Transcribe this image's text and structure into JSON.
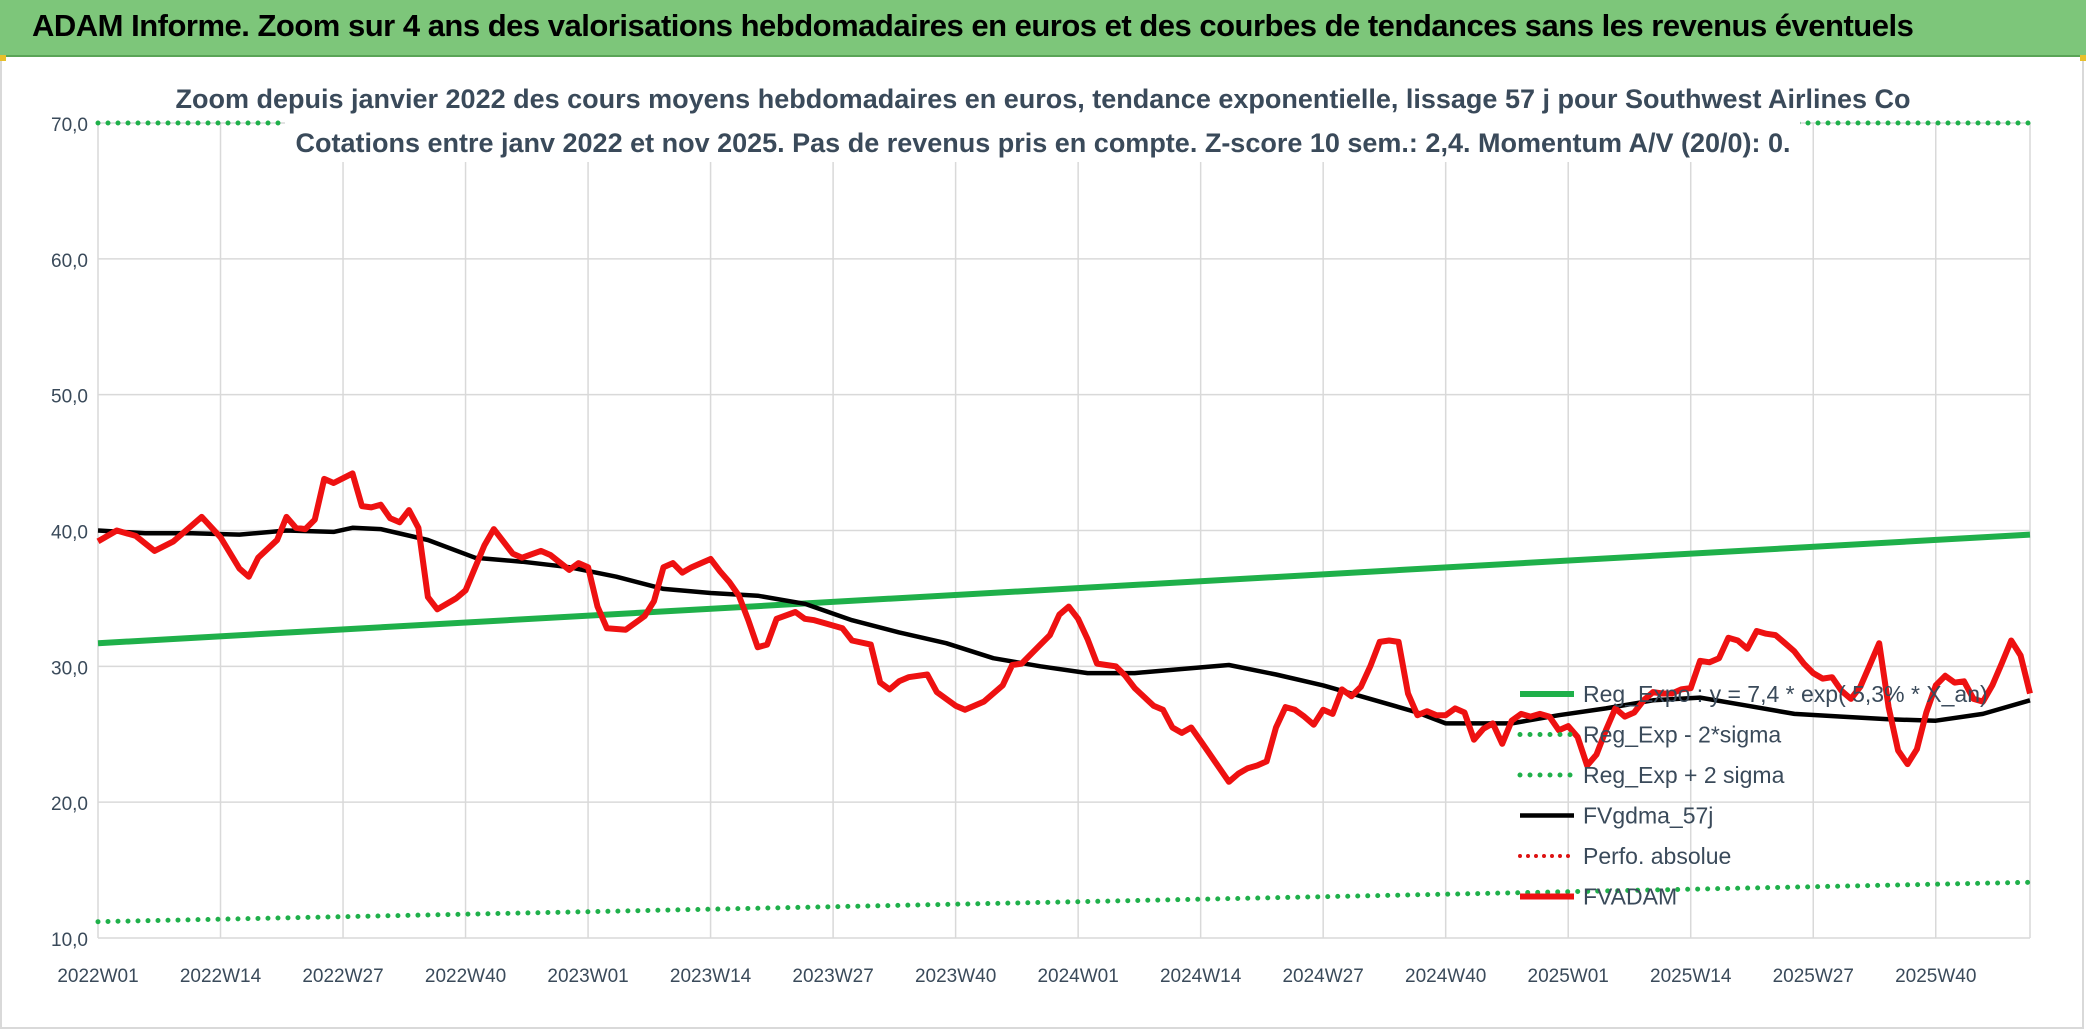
{
  "banner": {
    "title": "ADAM Informe. Zoom sur 4 ans des valorisations hebdomadaires en euros et des courbes de tendances sans les revenus éventuels"
  },
  "colors": {
    "banner": "#7dc67a",
    "reg_exp": "#1fb04a",
    "fvgdma": "#000000",
    "fvadam": "#ee1111",
    "perfo": "#dd1111",
    "grid": "#d9d9d9",
    "axis_text": "#3a4a5a"
  },
  "chart_data": {
    "type": "line",
    "title": "Zoom depuis janvier 2022 des cours moyens hebdomadaires en euros, tendance exponentielle, lissage 57 j pour Southwest Airlines Co",
    "subtitle": "Cotations entre janv 2022 et nov 2025. Pas de revenus pris en compte. Z-score 10 sem.: 2,4. Momentum A/V (20/0): 0.",
    "xlabel": "",
    "ylabel": "",
    "ylim": [
      10,
      70
    ],
    "yticks": [
      "10,0",
      "20,0",
      "30,0",
      "40,0",
      "50,0",
      "60,0",
      "70,0"
    ],
    "x_tick_labels": [
      "2022W01",
      "2022W14",
      "2022W27",
      "2022W40",
      "2023W01",
      "2023W14",
      "2023W27",
      "2023W40",
      "2024W01",
      "2024W14",
      "2024W27",
      "2024W40",
      "2025W01",
      "2025W14",
      "2025W27",
      "2025W40"
    ],
    "weeks": 206,
    "legend_position": "bottom-right",
    "series": [
      {
        "name": "Reg_Expo : y = 7,4 * exp( 5,3% * X_an)",
        "style": "solid-green",
        "points": [
          [
            0,
            31.7
          ],
          [
            205,
            39.7
          ]
        ]
      },
      {
        "name": "Reg_Exp - 2*sigma",
        "style": "dotted-green",
        "points": [
          [
            0,
            11.2
          ],
          [
            205,
            14.1
          ]
        ]
      },
      {
        "name": "Reg_Exp + 2 sigma",
        "style": "dotted-green",
        "points": [
          [
            0,
            70.0
          ],
          [
            205,
            70.0
          ]
        ]
      },
      {
        "name": "FVgdma_57j",
        "style": "solid-black",
        "points": [
          [
            0,
            40.0
          ],
          [
            5,
            39.8
          ],
          [
            10,
            39.8
          ],
          [
            15,
            39.7
          ],
          [
            20,
            40.0
          ],
          [
            25,
            39.9
          ],
          [
            27,
            40.2
          ],
          [
            30,
            40.1
          ],
          [
            35,
            39.3
          ],
          [
            40,
            38.0
          ],
          [
            45,
            37.7
          ],
          [
            50,
            37.3
          ],
          [
            55,
            36.6
          ],
          [
            60,
            35.7
          ],
          [
            65,
            35.4
          ],
          [
            70,
            35.2
          ],
          [
            75,
            34.6
          ],
          [
            80,
            33.4
          ],
          [
            85,
            32.5
          ],
          [
            90,
            31.7
          ],
          [
            95,
            30.6
          ],
          [
            100,
            30.0
          ],
          [
            105,
            29.5
          ],
          [
            110,
            29.5
          ],
          [
            115,
            29.8
          ],
          [
            120,
            30.1
          ],
          [
            125,
            29.4
          ],
          [
            130,
            28.6
          ],
          [
            135,
            27.6
          ],
          [
            140,
            26.6
          ],
          [
            143,
            25.8
          ],
          [
            150,
            25.8
          ],
          [
            155,
            26.4
          ],
          [
            160,
            26.9
          ],
          [
            165,
            27.5
          ],
          [
            170,
            27.7
          ],
          [
            175,
            27.1
          ],
          [
            180,
            26.5
          ],
          [
            185,
            26.3
          ],
          [
            190,
            26.1
          ],
          [
            195,
            26.0
          ],
          [
            200,
            26.5
          ],
          [
            205,
            27.5
          ]
        ]
      },
      {
        "name": "Perfo. absolue",
        "style": "dotted-red",
        "points": []
      },
      {
        "name": "FVADAM",
        "style": "solid-red",
        "points": [
          [
            0,
            39.2
          ],
          [
            2,
            40.0
          ],
          [
            4,
            39.6
          ],
          [
            6,
            38.5
          ],
          [
            8,
            39.2
          ],
          [
            10,
            40.4
          ],
          [
            11,
            41.0
          ],
          [
            13,
            39.5
          ],
          [
            15,
            37.2
          ],
          [
            16,
            36.6
          ],
          [
            17,
            38.0
          ],
          [
            19,
            39.3
          ],
          [
            20,
            41.0
          ],
          [
            21,
            40.2
          ],
          [
            22,
            40.1
          ],
          [
            23,
            40.8
          ],
          [
            24,
            43.8
          ],
          [
            25,
            43.5
          ],
          [
            27,
            44.2
          ],
          [
            28,
            41.8
          ],
          [
            29,
            41.7
          ],
          [
            30,
            41.9
          ],
          [
            31,
            40.9
          ],
          [
            32,
            40.6
          ],
          [
            33,
            41.5
          ],
          [
            34,
            40.2
          ],
          [
            35,
            35.1
          ],
          [
            36,
            34.2
          ],
          [
            38,
            35.0
          ],
          [
            39,
            35.6
          ],
          [
            41,
            38.9
          ],
          [
            42,
            40.1
          ],
          [
            44,
            38.3
          ],
          [
            45,
            38.0
          ],
          [
            47,
            38.5
          ],
          [
            48,
            38.2
          ],
          [
            50,
            37.1
          ],
          [
            51,
            37.6
          ],
          [
            52,
            37.3
          ],
          [
            53,
            34.4
          ],
          [
            54,
            32.8
          ],
          [
            56,
            32.7
          ],
          [
            58,
            33.7
          ],
          [
            59,
            34.8
          ],
          [
            60,
            37.3
          ],
          [
            61,
            37.6
          ],
          [
            62,
            36.9
          ],
          [
            63,
            37.3
          ],
          [
            65,
            37.9
          ],
          [
            66,
            37.0
          ],
          [
            67,
            36.2
          ],
          [
            68,
            35.2
          ],
          [
            69,
            33.4
          ],
          [
            70,
            31.4
          ],
          [
            71,
            31.6
          ],
          [
            72,
            33.5
          ],
          [
            74,
            34.0
          ],
          [
            75,
            33.5
          ],
          [
            76,
            33.4
          ],
          [
            77,
            33.2
          ],
          [
            79,
            32.8
          ],
          [
            80,
            31.9
          ],
          [
            82,
            31.6
          ],
          [
            83,
            28.8
          ],
          [
            84,
            28.3
          ],
          [
            85,
            28.9
          ],
          [
            86,
            29.2
          ],
          [
            88,
            29.4
          ],
          [
            89,
            28.1
          ],
          [
            91,
            27.1
          ],
          [
            92,
            26.8
          ],
          [
            94,
            27.4
          ],
          [
            96,
            28.6
          ],
          [
            97,
            30.1
          ],
          [
            98,
            30.2
          ],
          [
            99,
            30.9
          ],
          [
            100,
            31.6
          ],
          [
            101,
            32.3
          ],
          [
            102,
            33.8
          ],
          [
            103,
            34.4
          ],
          [
            104,
            33.5
          ],
          [
            105,
            32.0
          ],
          [
            106,
            30.2
          ],
          [
            107,
            30.1
          ],
          [
            108,
            30.0
          ],
          [
            109,
            29.3
          ],
          [
            110,
            28.4
          ],
          [
            112,
            27.1
          ],
          [
            113,
            26.8
          ],
          [
            114,
            25.5
          ],
          [
            115,
            25.1
          ],
          [
            116,
            25.5
          ],
          [
            117,
            24.5
          ],
          [
            118,
            23.5
          ],
          [
            119,
            22.5
          ],
          [
            120,
            21.5
          ],
          [
            121,
            22.1
          ],
          [
            122,
            22.5
          ],
          [
            123,
            22.7
          ],
          [
            124,
            23.0
          ],
          [
            125,
            25.5
          ],
          [
            126,
            27.0
          ],
          [
            127,
            26.8
          ],
          [
            128,
            26.3
          ],
          [
            129,
            25.7
          ],
          [
            130,
            26.8
          ],
          [
            131,
            26.5
          ],
          [
            132,
            28.3
          ],
          [
            133,
            27.8
          ],
          [
            134,
            28.5
          ],
          [
            135,
            30.0
          ],
          [
            136,
            31.8
          ],
          [
            137,
            31.9
          ],
          [
            138,
            31.8
          ],
          [
            139,
            28.0
          ],
          [
            140,
            26.4
          ],
          [
            141,
            26.7
          ],
          [
            142,
            26.4
          ],
          [
            143,
            26.4
          ],
          [
            144,
            26.9
          ],
          [
            145,
            26.6
          ],
          [
            146,
            24.6
          ],
          [
            147,
            25.4
          ],
          [
            148,
            25.8
          ],
          [
            149,
            24.3
          ],
          [
            150,
            26.0
          ],
          [
            151,
            26.5
          ],
          [
            152,
            26.3
          ],
          [
            153,
            26.5
          ],
          [
            154,
            26.3
          ],
          [
            155,
            25.3
          ],
          [
            156,
            25.6
          ],
          [
            157,
            24.8
          ],
          [
            158,
            22.7
          ],
          [
            159,
            23.5
          ],
          [
            160,
            25.3
          ],
          [
            161,
            26.9
          ],
          [
            162,
            26.3
          ],
          [
            163,
            26.6
          ],
          [
            164,
            27.5
          ],
          [
            165,
            28.1
          ],
          [
            166,
            28.0
          ],
          [
            167,
            28.0
          ],
          [
            168,
            28.3
          ],
          [
            169,
            28.4
          ],
          [
            170,
            30.4
          ],
          [
            171,
            30.3
          ],
          [
            172,
            30.6
          ],
          [
            173,
            32.1
          ],
          [
            174,
            31.9
          ],
          [
            175,
            31.3
          ],
          [
            176,
            32.6
          ],
          [
            177,
            32.4
          ],
          [
            178,
            32.3
          ],
          [
            179,
            31.7
          ],
          [
            180,
            31.1
          ],
          [
            181,
            30.2
          ],
          [
            182,
            29.5
          ],
          [
            183,
            29.1
          ],
          [
            184,
            29.2
          ],
          [
            185,
            28.2
          ],
          [
            186,
            27.6
          ],
          [
            187,
            28.5
          ],
          [
            188,
            30.1
          ],
          [
            189,
            31.7
          ],
          [
            190,
            27.0
          ],
          [
            191,
            23.8
          ],
          [
            192,
            22.8
          ],
          [
            193,
            23.9
          ],
          [
            194,
            26.6
          ],
          [
            195,
            28.6
          ],
          [
            196,
            29.3
          ],
          [
            197,
            28.8
          ],
          [
            198,
            28.9
          ],
          [
            199,
            27.6
          ],
          [
            200,
            27.4
          ],
          [
            201,
            28.6
          ],
          [
            202,
            30.2
          ],
          [
            203,
            31.9
          ],
          [
            204,
            30.8
          ],
          [
            205,
            28.0
          ]
        ]
      }
    ]
  }
}
